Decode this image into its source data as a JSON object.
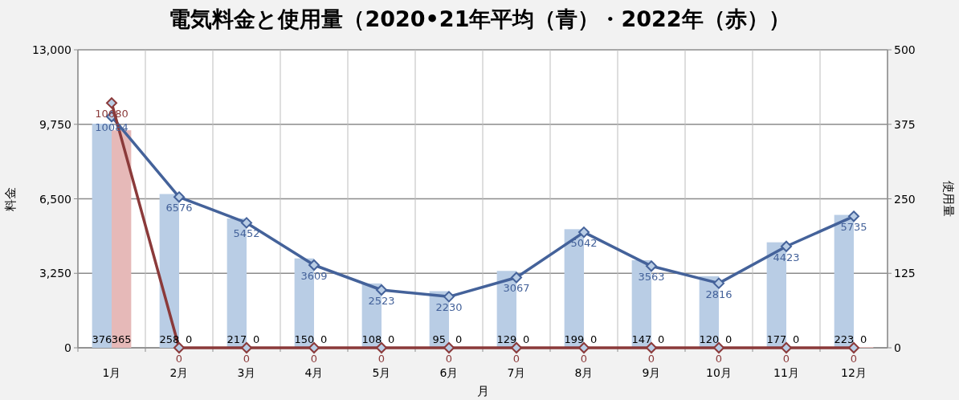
{
  "chart_data": {
    "type": "bar",
    "title": "電気料金と使用量（2020•21年平均（青）・2022年（赤））",
    "xlabel": "月",
    "ylabel": "料金",
    "y2label": "使用量",
    "categories": [
      "1月",
      "2月",
      "3月",
      "4月",
      "5月",
      "6月",
      "7月",
      "8月",
      "9月",
      "10月",
      "11月",
      "12月"
    ],
    "ylim": [
      0,
      13000
    ],
    "yticks": [
      {
        "value": 0,
        "label": "0"
      },
      {
        "value": 3250,
        "label": "3,250"
      },
      {
        "value": 6500,
        "label": "6,500"
      },
      {
        "value": 9750,
        "label": "9,750"
      },
      {
        "value": 13000,
        "label": "13,000"
      }
    ],
    "y2lim": [
      0,
      500
    ],
    "y2ticks": [
      0,
      125,
      250,
      375,
      500
    ],
    "grid": true,
    "data_labels": true,
    "marker": "diamond",
    "line_style": "solid",
    "series": [
      {
        "axis": "y2",
        "color": "#b9cde5",
        "values": [
          376,
          258,
          217,
          150,
          108,
          95,
          129,
          199,
          147,
          120,
          177,
          223
        ]
      },
      {
        "axis": "y2",
        "color": "#e6b9b8",
        "values": [
          365,
          0,
          0,
          0,
          0,
          0,
          0,
          0,
          0,
          0,
          0,
          0
        ]
      },
      {
        "type": "line",
        "color": "#44629a",
        "values": [
          10084,
          6576,
          5452,
          3609,
          2523,
          2230,
          3067,
          5042,
          3563,
          2816,
          4423,
          5735
        ]
      },
      {
        "type": "line",
        "color": "#8b3a3a",
        "values": [
          10680,
          0,
          0,
          0,
          0,
          0,
          0,
          0,
          0,
          0,
          0,
          0
        ]
      }
    ]
  }
}
